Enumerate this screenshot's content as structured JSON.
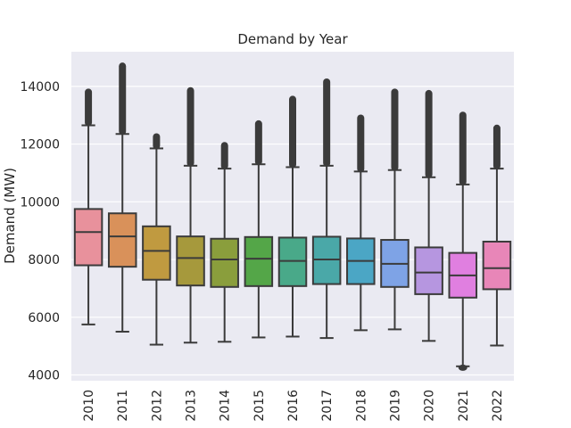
{
  "chart_data": {
    "type": "box",
    "title": "Demand by Year",
    "xlabel": "",
    "ylabel": "Demand (MW)",
    "ylim": [
      3800,
      15200
    ],
    "yticks": [
      4000,
      6000,
      8000,
      10000,
      12000,
      14000
    ],
    "grid": true,
    "legend": "none",
    "categories": [
      "2010",
      "2011",
      "2012",
      "2013",
      "2014",
      "2015",
      "2016",
      "2017",
      "2018",
      "2019",
      "2020",
      "2021",
      "2022"
    ],
    "colors": [
      "#e8919c",
      "#d9915a",
      "#c09a40",
      "#a6993c",
      "#8a9e3c",
      "#54a648",
      "#49a989",
      "#4aa8a8",
      "#4ba6c5",
      "#7ea3e6",
      "#b696e0",
      "#e07fe0",
      "#e886b8"
    ],
    "series": [
      {
        "year": "2010",
        "min": 5750,
        "q1": 7800,
        "median": 8950,
        "q3": 9750,
        "max": 12650,
        "flier_low": null,
        "flier_high": 13800
      },
      {
        "year": "2011",
        "min": 5500,
        "q1": 7750,
        "median": 8800,
        "q3": 9600,
        "max": 12350,
        "flier_low": null,
        "flier_high": 14700
      },
      {
        "year": "2012",
        "min": 5050,
        "q1": 7300,
        "median": 8300,
        "q3": 9150,
        "max": 11850,
        "flier_low": null,
        "flier_high": 12250
      },
      {
        "year": "2013",
        "min": 5120,
        "q1": 7100,
        "median": 8050,
        "q3": 8800,
        "max": 11250,
        "flier_low": null,
        "flier_high": 13850
      },
      {
        "year": "2014",
        "min": 5150,
        "q1": 7050,
        "median": 8000,
        "q3": 8720,
        "max": 11150,
        "flier_low": null,
        "flier_high": 11950
      },
      {
        "year": "2015",
        "min": 5300,
        "q1": 7080,
        "median": 8030,
        "q3": 8780,
        "max": 11300,
        "flier_low": null,
        "flier_high": 12700
      },
      {
        "year": "2016",
        "min": 5330,
        "q1": 7080,
        "median": 7950,
        "q3": 8760,
        "max": 11200,
        "flier_low": null,
        "flier_high": 13550
      },
      {
        "year": "2017",
        "min": 5280,
        "q1": 7150,
        "median": 8000,
        "q3": 8790,
        "max": 11250,
        "flier_low": null,
        "flier_high": 14150
      },
      {
        "year": "2018",
        "min": 5550,
        "q1": 7150,
        "median": 7950,
        "q3": 8730,
        "max": 11050,
        "flier_low": null,
        "flier_high": 12900
      },
      {
        "year": "2019",
        "min": 5580,
        "q1": 7050,
        "median": 7850,
        "q3": 8680,
        "max": 11100,
        "flier_low": null,
        "flier_high": 13800
      },
      {
        "year": "2020",
        "min": 5180,
        "q1": 6800,
        "median": 7550,
        "q3": 8420,
        "max": 10850,
        "flier_low": null,
        "flier_high": 13750
      },
      {
        "year": "2021",
        "min": 4300,
        "q1": 6680,
        "median": 7450,
        "q3": 8230,
        "max": 10600,
        "flier_low": 4250,
        "flier_high": 13000
      },
      {
        "year": "2022",
        "min": 5020,
        "q1": 6970,
        "median": 7700,
        "q3": 8620,
        "max": 11150,
        "flier_low": null,
        "flier_high": 12550
      }
    ]
  }
}
